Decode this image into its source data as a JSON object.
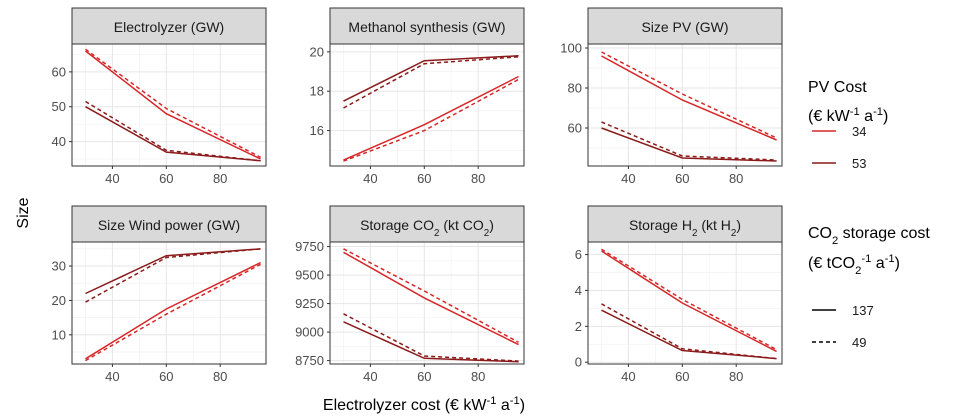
{
  "axes": {
    "xlabel": "Electrolyzer cost (€ kW-1 a-1)",
    "ylabel": "Size"
  },
  "legend": {
    "pv_title_line1": "PV Cost",
    "pv_title_line2": "(€ kW-1 a-1)",
    "pv_entries": [
      {
        "label": "34",
        "color": "#d62728"
      },
      {
        "label": "53",
        "color": "#8b1a1a"
      }
    ],
    "co2_title_line1": "CO2 storage cost",
    "co2_title_line2": "(€ tCO2-1 a-1)",
    "co2_entries": [
      {
        "label": "137",
        "dash": "solid"
      },
      {
        "label": "49",
        "dash": "dashed"
      }
    ]
  },
  "chart_data": [
    {
      "type": "line",
      "title": "Electrolyzer (GW)",
      "x": [
        30,
        60,
        95
      ],
      "xlim": [
        25,
        97
      ],
      "xticks": [
        40,
        60,
        80
      ],
      "ylim": [
        33,
        68
      ],
      "yticks": [
        40,
        50,
        60
      ],
      "series": [
        {
          "pv": "34",
          "co2": "137",
          "values": [
            66,
            48,
            35
          ]
        },
        {
          "pv": "34",
          "co2": "49",
          "values": [
            66.5,
            49.5,
            35.5
          ]
        },
        {
          "pv": "53",
          "co2": "137",
          "values": [
            50,
            37,
            34.5
          ]
        },
        {
          "pv": "53",
          "co2": "49",
          "values": [
            51.5,
            37.5,
            34.5
          ]
        }
      ]
    },
    {
      "type": "line",
      "title": "Methanol synthesis (GW)",
      "x": [
        30,
        60,
        95
      ],
      "xlim": [
        25,
        97
      ],
      "xticks": [
        40,
        60,
        80
      ],
      "ylim": [
        14.2,
        20.4
      ],
      "yticks": [
        16,
        18,
        20
      ],
      "series": [
        {
          "pv": "34",
          "co2": "137",
          "values": [
            14.5,
            16.3,
            18.75
          ]
        },
        {
          "pv": "34",
          "co2": "49",
          "values": [
            14.45,
            16.0,
            18.6
          ]
        },
        {
          "pv": "53",
          "co2": "137",
          "values": [
            17.5,
            19.55,
            19.8
          ]
        },
        {
          "pv": "53",
          "co2": "49",
          "values": [
            17.15,
            19.4,
            19.75
          ]
        }
      ]
    },
    {
      "type": "line",
      "title": "Size PV (GW)",
      "x": [
        30,
        60,
        95
      ],
      "xlim": [
        25,
        97
      ],
      "xticks": [
        40,
        60,
        80
      ],
      "ylim": [
        41,
        102
      ],
      "yticks": [
        60,
        80,
        100
      ],
      "series": [
        {
          "pv": "34",
          "co2": "137",
          "values": [
            96,
            74,
            54
          ]
        },
        {
          "pv": "34",
          "co2": "49",
          "values": [
            98,
            77,
            55
          ]
        },
        {
          "pv": "53",
          "co2": "137",
          "values": [
            60,
            45,
            43.5
          ]
        },
        {
          "pv": "53",
          "co2": "49",
          "values": [
            63,
            46,
            44
          ]
        }
      ]
    },
    {
      "type": "line",
      "title": "Size Wind power (GW)",
      "x": [
        30,
        60,
        95
      ],
      "xlim": [
        25,
        97
      ],
      "xticks": [
        40,
        60,
        80
      ],
      "ylim": [
        1.5,
        37
      ],
      "yticks": [
        10,
        20,
        30
      ],
      "series": [
        {
          "pv": "34",
          "co2": "137",
          "values": [
            3,
            17.5,
            31
          ]
        },
        {
          "pv": "34",
          "co2": "49",
          "values": [
            2.5,
            16,
            30.5
          ]
        },
        {
          "pv": "53",
          "co2": "137",
          "values": [
            22,
            33,
            35
          ]
        },
        {
          "pv": "53",
          "co2": "49",
          "values": [
            19.5,
            32.5,
            35
          ]
        }
      ]
    },
    {
      "type": "line",
      "title": "Storage CO2 (kt CO2)",
      "x": [
        30,
        60,
        95
      ],
      "xlim": [
        25,
        97
      ],
      "xticks": [
        40,
        60,
        80
      ],
      "ylim": [
        8720,
        9790
      ],
      "yticks": [
        8750,
        9000,
        9250,
        9500,
        9750
      ],
      "series": [
        {
          "pv": "34",
          "co2": "137",
          "values": [
            9700,
            9300,
            8890
          ]
        },
        {
          "pv": "34",
          "co2": "49",
          "values": [
            9730,
            9360,
            8910
          ]
        },
        {
          "pv": "53",
          "co2": "137",
          "values": [
            9090,
            8770,
            8740
          ]
        },
        {
          "pv": "53",
          "co2": "49",
          "values": [
            9160,
            8790,
            8745
          ]
        }
      ]
    },
    {
      "type": "line",
      "title": "Storage H2 (kt H2)",
      "x": [
        30,
        60,
        95
      ],
      "xlim": [
        25,
        97
      ],
      "xticks": [
        40,
        60,
        80
      ],
      "ylim": [
        -0.1,
        6.7
      ],
      "yticks": [
        0,
        2,
        4,
        6
      ],
      "series": [
        {
          "pv": "34",
          "co2": "137",
          "values": [
            6.2,
            3.3,
            0.6
          ]
        },
        {
          "pv": "34",
          "co2": "49",
          "values": [
            6.3,
            3.5,
            0.7
          ]
        },
        {
          "pv": "53",
          "co2": "137",
          "values": [
            2.9,
            0.65,
            0.2
          ]
        },
        {
          "pv": "53",
          "co2": "49",
          "values": [
            3.25,
            0.75,
            0.2
          ]
        }
      ]
    }
  ]
}
